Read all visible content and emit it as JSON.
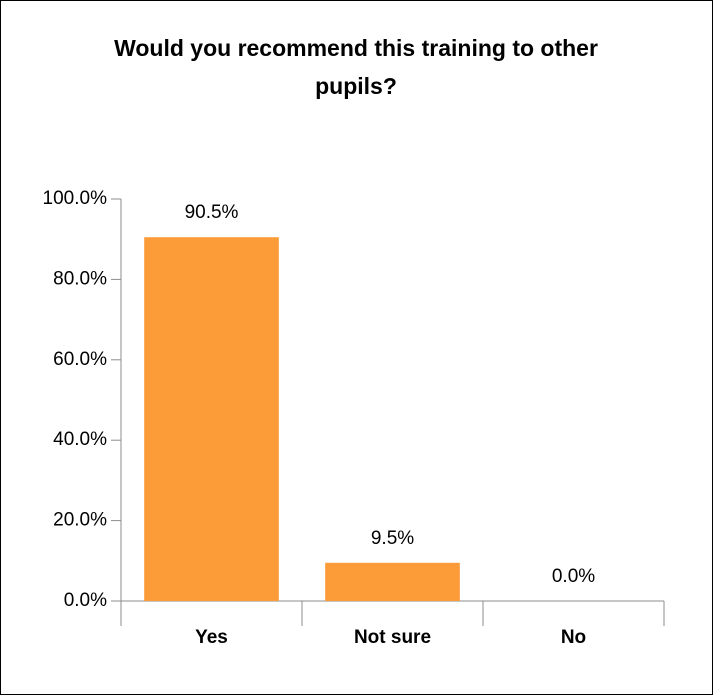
{
  "chart_data": {
    "type": "bar",
    "title": "Would you recommend this training to other pupils?",
    "categories": [
      "Yes",
      "Not sure",
      "No"
    ],
    "values": [
      90.5,
      9.5,
      0
    ],
    "value_labels": [
      "90.5%",
      "9.5%",
      "0.0%"
    ],
    "color": "#fb9c39",
    "ylim": [
      0,
      100
    ],
    "yticks": [
      {
        "value": 0,
        "label": "0.0%"
      },
      {
        "value": 20,
        "label": "20.0%"
      },
      {
        "value": 40,
        "label": "40.0%"
      },
      {
        "value": 60,
        "label": "60.0%"
      },
      {
        "value": 80,
        "label": "80.0%"
      },
      {
        "value": 100,
        "label": "100.0%"
      }
    ],
    "grid": false
  }
}
